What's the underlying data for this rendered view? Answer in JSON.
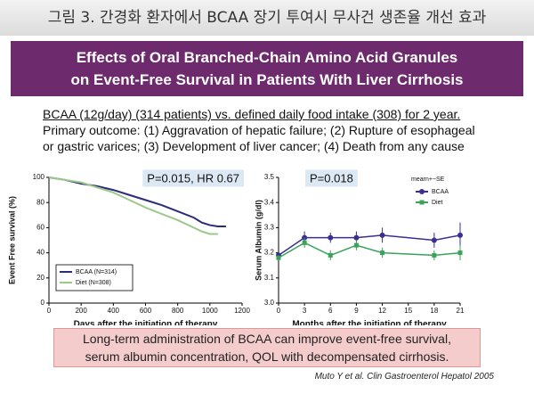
{
  "header": {
    "title": "그림 3. 간경화 환자에서 BCAA 장기 투여시 무사건 생존율 개선 효과"
  },
  "banner": {
    "lines": [
      "Effects of Oral Branched-Chain Amino Acid Granules",
      "on Event-Free Survival in Patients With Liver Cirrhosis"
    ]
  },
  "description": {
    "lines": [
      "BCAA (12g/day) (314 patients) vs. defined daily food intake (308) for 2 year.",
      "Primary outcome: (1) Aggravation of hepatic failure; (2) Rupture of esophageal",
      "or gastric varices; (3) Development of liver cancer; (4) Death from any cause"
    ]
  },
  "chart_data": [
    {
      "type": "line",
      "annotation": "P=0.015, HR 0.67",
      "xlabel": "Days after the initiation of therapy",
      "ylabel": "Event Free survival (%)",
      "x": [
        0,
        100,
        200,
        300,
        400,
        500,
        600,
        700,
        800,
        900,
        950,
        1000,
        1050,
        1100
      ],
      "series": [
        {
          "name": "BCAA (N=314)",
          "color": "#2e2a7a",
          "values": [
            100,
            98,
            95,
            93,
            90,
            86,
            82,
            78,
            73,
            68,
            64,
            62,
            61,
            61
          ]
        },
        {
          "name": "Diet (N=308)",
          "color": "#9cc98a",
          "values": [
            100,
            98,
            96,
            92,
            88,
            82,
            76,
            71,
            66,
            60,
            57,
            55,
            55,
            null
          ]
        }
      ],
      "xlim": [
        0,
        1200
      ],
      "xticks": [
        0,
        200,
        400,
        600,
        800,
        1000,
        1200
      ],
      "ylim": [
        0,
        100
      ],
      "yticks": [
        0,
        20,
        40,
        60,
        80,
        100
      ],
      "legend": "lower left"
    },
    {
      "type": "line",
      "annotation": "P=0.018",
      "note": "mearn+−SE",
      "xlabel": "Months after the initiation of therapy",
      "ylabel": "Serum Albumin (g/dl)",
      "x": [
        0,
        3,
        6,
        9,
        12,
        18,
        21
      ],
      "series": [
        {
          "name": "BCAA",
          "color": "#3b2f8f",
          "marker": "circle",
          "values": [
            3.19,
            3.26,
            3.26,
            3.26,
            3.27,
            3.25,
            3.27
          ],
          "errors": [
            0.01,
            0.025,
            0.02,
            0.025,
            0.03,
            0.03,
            0.05
          ]
        },
        {
          "name": "Diet",
          "color": "#3aa35a",
          "marker": "square",
          "values": [
            3.18,
            3.24,
            3.19,
            3.23,
            3.2,
            3.19,
            3.2
          ],
          "errors": [
            0.01,
            0.02,
            0.02,
            0.02,
            0.02,
            0.02,
            0.03
          ]
        }
      ],
      "xlim": [
        0,
        21
      ],
      "xticks": [
        0,
        3,
        6,
        9,
        12,
        15,
        18,
        21
      ],
      "ylim": [
        3,
        3.5
      ],
      "yticks": [
        {
          "value": 3,
          "label": "3.0"
        },
        3.1,
        3.2,
        3.3,
        3.4,
        3.5
      ],
      "legend": "upper right"
    }
  ],
  "conclusion": {
    "lines": [
      "Long-term administration of BCAA can improve event-free survival,",
      "serum albumin concentration, QOL with decompensated cirrhosis."
    ]
  },
  "citation": "Muto Y et al. Clin Gastroenterol Hepatol 2005"
}
